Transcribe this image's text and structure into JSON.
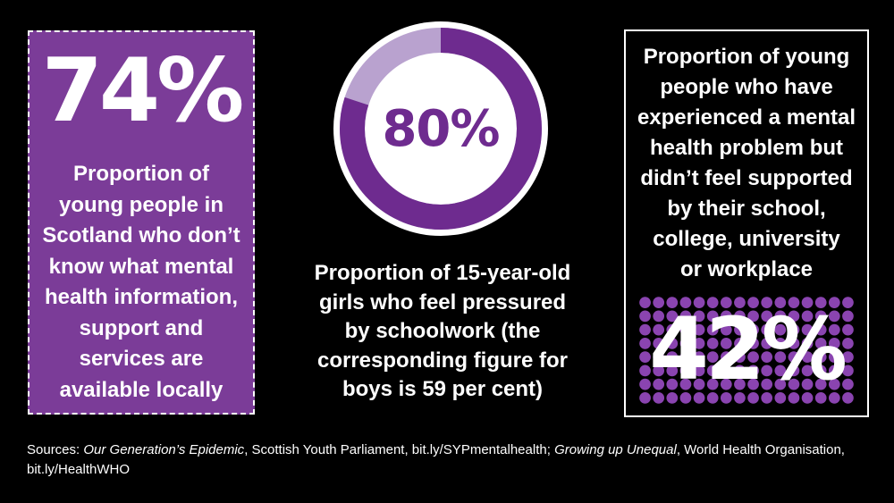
{
  "stat_left": {
    "value": "74%",
    "description": "Proportion of\nyoung people in\nScotland who don’t\nknow what mental\nhealth information,\nsupport and\nservices are\navailable locally"
  },
  "stat_middle": {
    "value": "80%",
    "fraction": 0.8,
    "description": "Proportion of 15-year-old\ngirls who feel pressured\nby schoolwork (the\ncorresponding figure for\nboys is 59 per cent)"
  },
  "stat_right": {
    "value": "42%",
    "description": "Proportion of young\npeople who have\nexperienced a mental\nhealth problem but\ndidn’t feel supported\nby their school,\ncollege, university\nor workplace"
  },
  "sources": {
    "prefix": "Sources: ",
    "title1": "Our Generation’s Epidemic",
    "text1": ", Scottish Youth Parliament, bit.ly/SYPmentalhealth; ",
    "title2": "Growing up Unequal",
    "text2": ", World Health Organisation, bit.ly/HealthWHO"
  },
  "colors": {
    "background": "#000000",
    "purple_box": "#7b3c98",
    "ring_dark": "#6e2b8f",
    "ring_light": "#b9a2cf",
    "dots": "#8a44b0",
    "text": "#ffffff"
  }
}
